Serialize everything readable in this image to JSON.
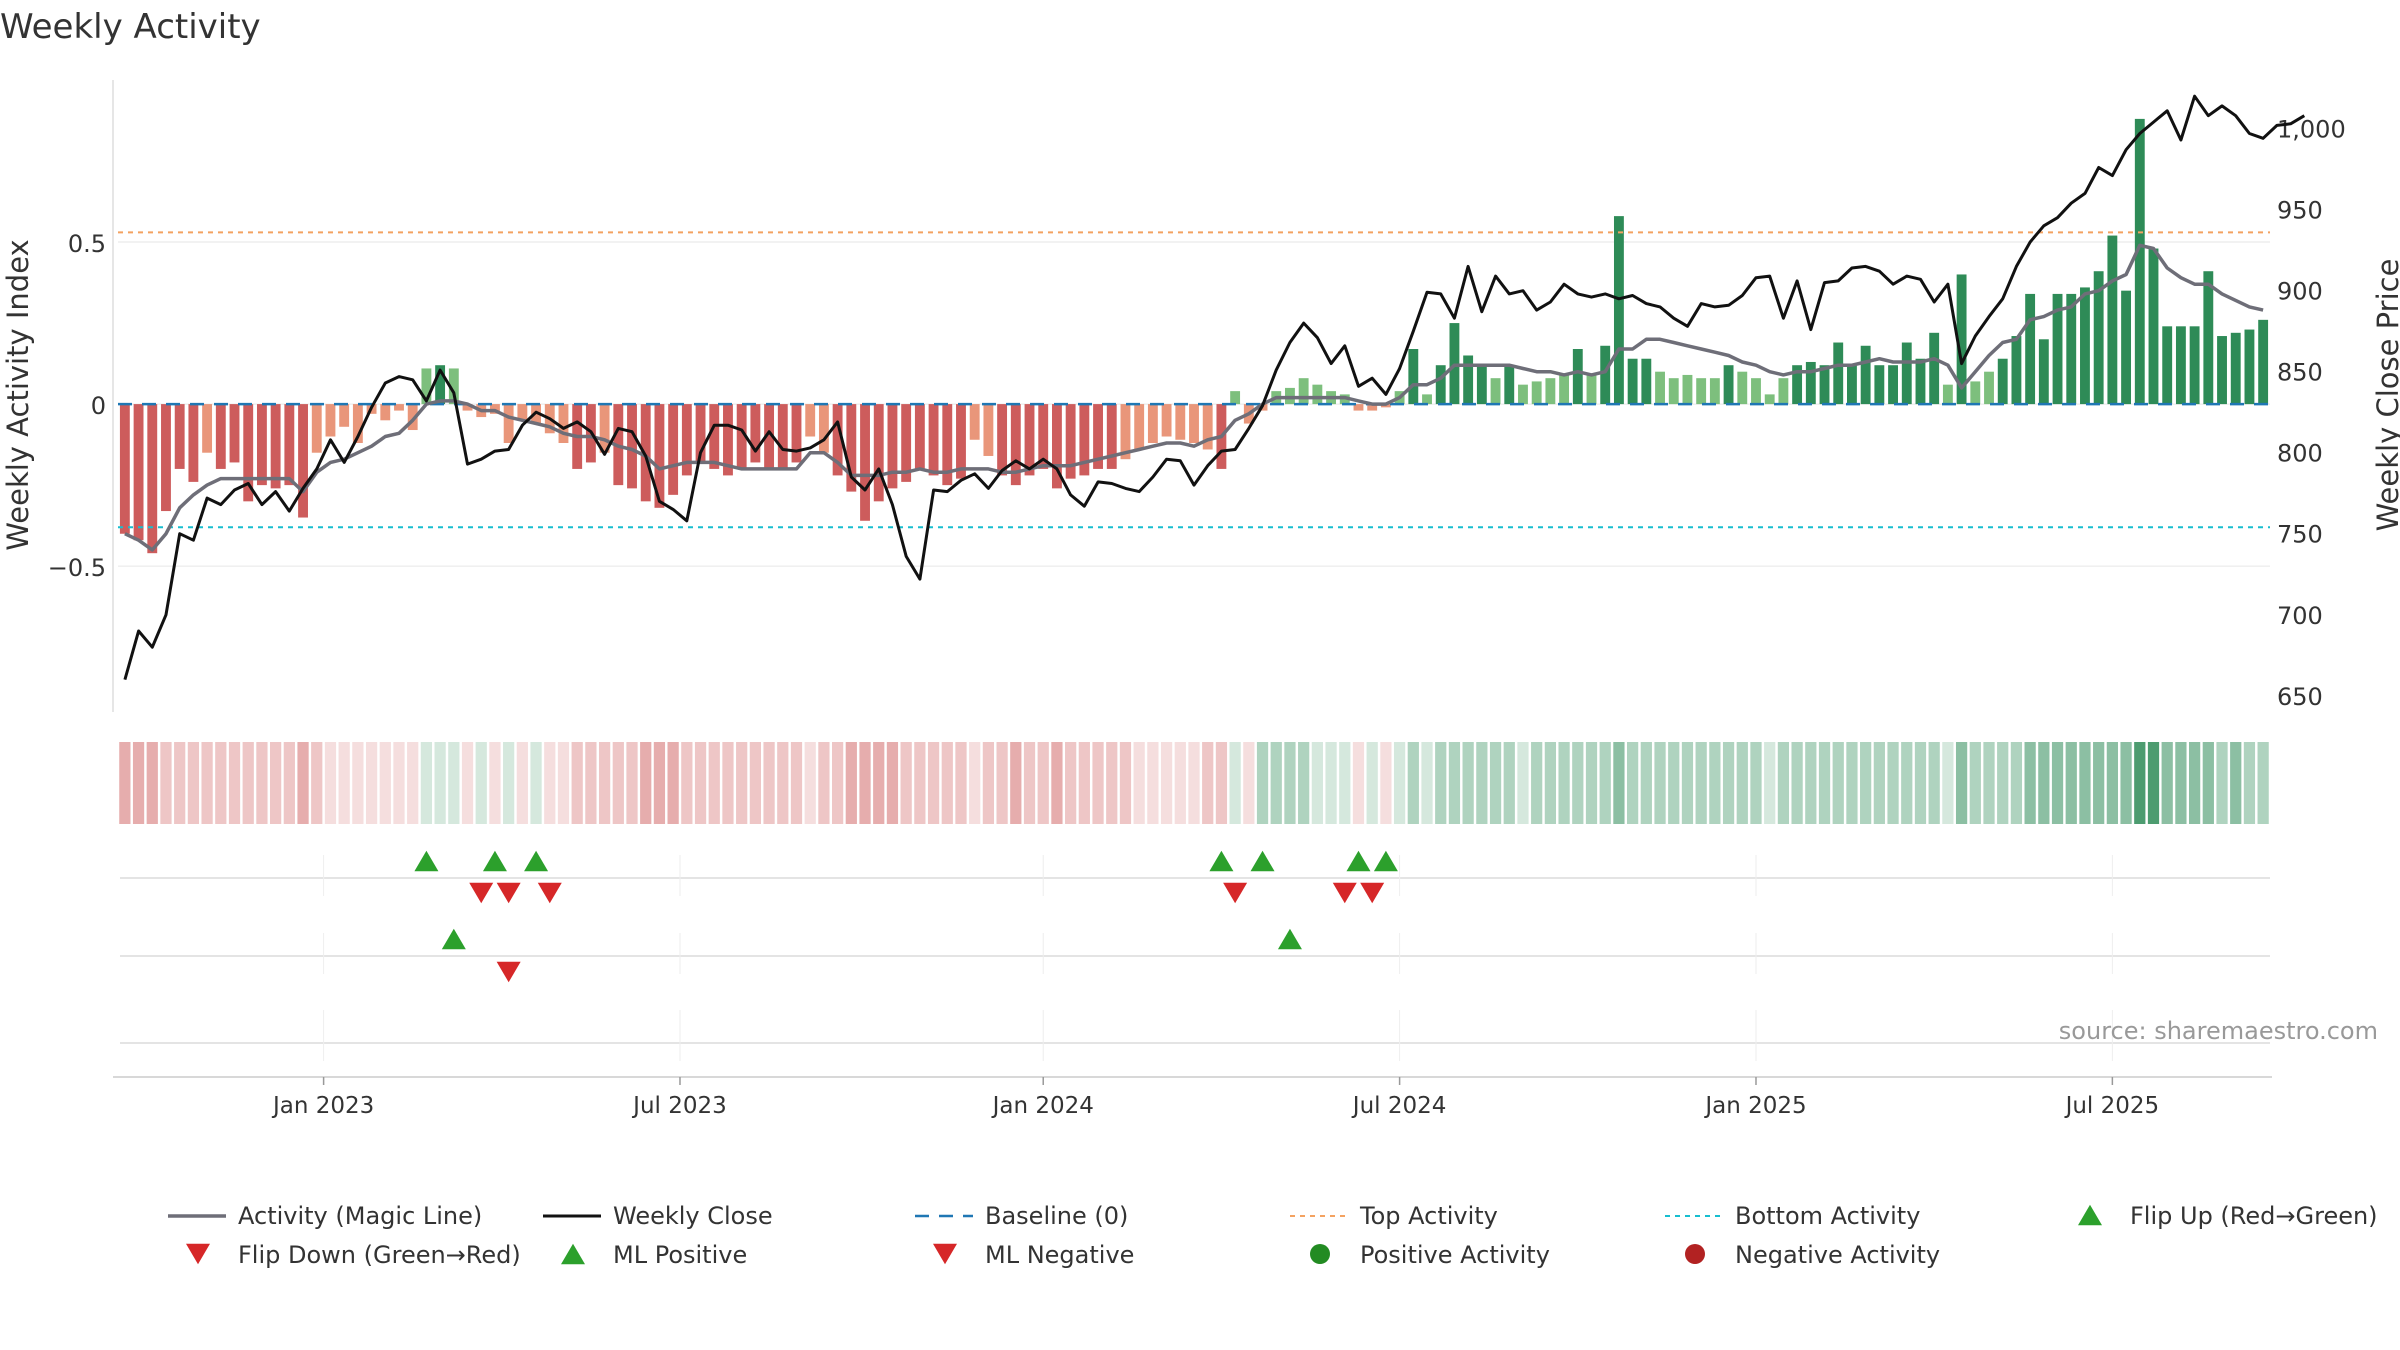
{
  "title": "Weekly Activity",
  "watermark": "source: sharemaestro.com",
  "colors": {
    "pos_strong": "#2e8b57",
    "pos_light": "#7dbf7d",
    "neg_strong": "#cd5c5c",
    "neg_light": "#e9967a",
    "magic_line": "#6e6e78",
    "close_line": "#111111",
    "baseline": "#1f77b4",
    "top_line": "#f4a261",
    "bottom_line": "#17becf",
    "flip_up": "#2ca02c",
    "flip_down": "#d62728",
    "pos_dot": "#228b22",
    "neg_dot": "#b22222",
    "grid": "#e6e6e6",
    "axis_text": "#333333"
  },
  "chart_data": {
    "type": "bar",
    "title": "Weekly Activity",
    "ylabel": "Weekly Activity Index",
    "y2label": "Weekly Close Price",
    "ylim": [
      -0.95,
      1.0
    ],
    "y2lim": [
      640,
      1030
    ],
    "yticks": [
      {
        "v": 0.5,
        "label": "0.5"
      },
      {
        "v": 0,
        "label": "0"
      },
      {
        "v": -0.5,
        "label": "−0.5"
      }
    ],
    "y2ticks": [
      {
        "v": 650,
        "label": "650"
      },
      {
        "v": 700,
        "label": "700"
      },
      {
        "v": 750,
        "label": "750"
      },
      {
        "v": 800,
        "label": "800"
      },
      {
        "v": 850,
        "label": "850"
      },
      {
        "v": 900,
        "label": "900"
      },
      {
        "v": 950,
        "label": "950"
      },
      {
        "v": 1000,
        "label": "1,000"
      }
    ],
    "xticks": [
      {
        "week": 14.5,
        "label": "Jan 2023"
      },
      {
        "week": 40.5,
        "label": "Jul 2023"
      },
      {
        "week": 67,
        "label": "Jan 2024"
      },
      {
        "week": 93,
        "label": "Jul 2024"
      },
      {
        "week": 119,
        "label": "Jan 2025"
      },
      {
        "week": 145,
        "label": "Jul 2025"
      }
    ],
    "top_activity": 0.53,
    "bottom_activity": -0.38,
    "baseline": 0,
    "activity": [
      -0.4,
      -0.42,
      -0.46,
      -0.33,
      -0.2,
      -0.24,
      -0.15,
      -0.2,
      -0.18,
      -0.3,
      -0.25,
      -0.26,
      -0.25,
      -0.35,
      -0.15,
      -0.1,
      -0.07,
      -0.12,
      -0.03,
      -0.05,
      -0.02,
      -0.08,
      0.11,
      0.12,
      0.11,
      -0.02,
      -0.04,
      -0.03,
      -0.12,
      -0.05,
      -0.06,
      -0.09,
      -0.12,
      -0.2,
      -0.18,
      -0.15,
      -0.25,
      -0.26,
      -0.3,
      -0.32,
      -0.28,
      -0.22,
      -0.18,
      -0.2,
      -0.22,
      -0.2,
      -0.18,
      -0.2,
      -0.2,
      -0.18,
      -0.1,
      -0.15,
      -0.22,
      -0.27,
      -0.36,
      -0.3,
      -0.26,
      -0.24,
      -0.2,
      -0.22,
      -0.25,
      -0.23,
      -0.11,
      -0.16,
      -0.22,
      -0.25,
      -0.22,
      -0.2,
      -0.26,
      -0.23,
      -0.22,
      -0.2,
      -0.2,
      -0.17,
      -0.14,
      -0.12,
      -0.1,
      -0.11,
      -0.12,
      -0.14,
      -0.2,
      0.04,
      -0.06,
      -0.02,
      0.04,
      0.05,
      0.08,
      0.06,
      0.04,
      0.03,
      -0.02,
      -0.02,
      -0.01,
      0.04,
      0.17,
      0.03,
      0.12,
      0.25,
      0.15,
      0.12,
      0.08,
      0.12,
      0.06,
      0.07,
      0.08,
      0.09,
      0.17,
      0.09,
      0.18,
      0.58,
      0.14,
      0.14,
      0.1,
      0.08,
      0.09,
      0.08,
      0.08,
      0.12,
      0.1,
      0.08,
      0.03,
      0.08,
      0.12,
      0.13,
      0.12,
      0.19,
      0.12,
      0.18,
      0.12,
      0.12,
      0.19,
      0.14,
      0.22,
      0.06,
      0.4,
      0.07,
      0.1,
      0.14,
      0.21,
      0.34,
      0.2,
      0.34,
      0.34,
      0.36,
      0.41,
      0.52,
      0.35,
      0.88,
      0.48,
      0.24,
      0.24,
      0.24,
      0.41,
      0.21,
      0.22,
      0.23,
      0.26
    ],
    "magic_line": [
      -0.4,
      -0.42,
      -0.45,
      -0.4,
      -0.32,
      -0.28,
      -0.25,
      -0.23,
      -0.23,
      -0.23,
      -0.23,
      -0.23,
      -0.23,
      -0.27,
      -0.21,
      -0.18,
      -0.17,
      -0.15,
      -0.13,
      -0.1,
      -0.09,
      -0.05,
      0.0,
      0.01,
      0.01,
      0.0,
      -0.02,
      -0.02,
      -0.04,
      -0.05,
      -0.06,
      -0.07,
      -0.09,
      -0.1,
      -0.1,
      -0.11,
      -0.13,
      -0.14,
      -0.16,
      -0.2,
      -0.19,
      -0.18,
      -0.18,
      -0.18,
      -0.19,
      -0.2,
      -0.2,
      -0.2,
      -0.2,
      -0.2,
      -0.15,
      -0.15,
      -0.18,
      -0.22,
      -0.22,
      -0.22,
      -0.21,
      -0.21,
      -0.2,
      -0.21,
      -0.21,
      -0.2,
      -0.2,
      -0.2,
      -0.21,
      -0.21,
      -0.2,
      -0.19,
      -0.19,
      -0.19,
      -0.18,
      -0.17,
      -0.16,
      -0.15,
      -0.14,
      -0.13,
      -0.12,
      -0.12,
      -0.13,
      -0.11,
      -0.1,
      -0.05,
      -0.03,
      0.0,
      0.02,
      0.02,
      0.02,
      0.02,
      0.02,
      0.02,
      0.01,
      0.0,
      0.0,
      0.02,
      0.06,
      0.06,
      0.08,
      0.12,
      0.12,
      0.12,
      0.12,
      0.12,
      0.11,
      0.1,
      0.1,
      0.09,
      0.1,
      0.09,
      0.1,
      0.17,
      0.17,
      0.2,
      0.2,
      0.19,
      0.18,
      0.17,
      0.16,
      0.15,
      0.13,
      0.12,
      0.1,
      0.09,
      0.1,
      0.1,
      0.11,
      0.12,
      0.12,
      0.13,
      0.14,
      0.13,
      0.13,
      0.13,
      0.14,
      0.12,
      0.05,
      0.1,
      0.15,
      0.19,
      0.2,
      0.26,
      0.27,
      0.29,
      0.3,
      0.34,
      0.35,
      0.38,
      0.4,
      0.49,
      0.48,
      0.42,
      0.39,
      0.37,
      0.37,
      0.34,
      0.32,
      0.3,
      0.29
    ],
    "weekly_close": [
      660,
      690,
      680,
      700,
      750,
      746,
      772,
      768,
      777,
      781,
      768,
      776,
      764,
      778,
      790,
      808,
      794,
      810,
      828,
      843,
      847,
      845,
      832,
      851,
      837,
      793,
      796,
      801,
      802,
      817,
      825,
      821,
      815,
      819,
      813,
      799,
      815,
      813,
      798,
      770,
      765,
      758,
      800,
      817,
      817,
      814,
      801,
      813,
      802,
      801,
      803,
      808,
      819,
      785,
      777,
      790,
      768,
      736,
      722,
      777,
      776,
      783,
      787,
      778,
      789,
      795,
      790,
      796,
      790,
      774,
      767,
      782,
      781,
      778,
      776,
      785,
      796,
      795,
      780,
      792,
      801,
      802,
      815,
      829,
      851,
      868,
      880,
      871,
      855,
      866,
      841,
      846,
      836,
      852,
      875,
      899,
      898,
      883,
      915,
      887,
      909,
      898,
      900,
      888,
      893,
      904,
      898,
      896,
      898,
      895,
      897,
      892,
      890,
      883,
      878,
      892,
      890,
      891,
      897,
      908,
      909,
      883,
      906,
      876,
      905,
      906,
      914,
      915,
      912,
      904,
      909,
      907,
      893,
      904,
      855,
      872,
      884,
      895,
      915,
      930,
      940,
      945,
      954,
      960,
      976,
      971,
      987,
      997,
      1004,
      1011,
      993,
      1020,
      1008,
      1014,
      1008,
      997,
      994,
      1002,
      1003,
      1008
    ],
    "heat_strip": [
      -3,
      -3,
      -3,
      -2,
      -2,
      -2,
      -2,
      -2,
      -2,
      -2,
      -2,
      -2,
      -2,
      -3,
      -2,
      -1,
      -1,
      -1,
      -1,
      -1,
      -1,
      -1,
      1,
      1,
      1,
      -1,
      1,
      -1,
      1,
      -1,
      1,
      -1,
      -1,
      -2,
      -2,
      -2,
      -2,
      -2,
      -3,
      -3,
      -3,
      -2,
      -2,
      -2,
      -2,
      -2,
      -2,
      -2,
      -2,
      -2,
      -1,
      -2,
      -2,
      -3,
      -3,
      -3,
      -3,
      -2,
      -2,
      -2,
      -2,
      -2,
      -1,
      -2,
      -2,
      -3,
      -2,
      -2,
      -3,
      -2,
      -2,
      -2,
      -2,
      -2,
      -1,
      -1,
      -1,
      -1,
      -1,
      -2,
      -2,
      1,
      -1,
      2,
      2,
      2,
      2,
      1,
      1,
      1,
      -1,
      1,
      -1,
      1,
      2,
      1,
      2,
      2,
      2,
      2,
      2,
      2,
      1,
      2,
      2,
      2,
      2,
      2,
      2,
      3,
      2,
      2,
      2,
      2,
      2,
      2,
      2,
      2,
      2,
      2,
      1,
      2,
      2,
      2,
      2,
      2,
      2,
      2,
      2,
      2,
      2,
      2,
      2,
      1,
      3,
      2,
      2,
      2,
      2,
      3,
      3,
      3,
      3,
      3,
      3,
      3,
      3,
      4,
      4,
      3,
      3,
      3,
      3,
      2,
      3,
      2,
      2
    ],
    "flip_up_weeks": [
      22,
      27,
      30,
      80,
      83,
      90,
      92
    ],
    "flip_down_weeks": [
      26,
      28,
      31,
      81,
      89,
      91
    ],
    "ml_positive_weeks": [
      24,
      85
    ],
    "ml_negative_weeks": [
      28
    ],
    "legend": [
      {
        "label": "Activity (Magic Line)",
        "marker": "solid-gray"
      },
      {
        "label": "Weekly Close",
        "marker": "solid-black"
      },
      {
        "label": "Baseline (0)",
        "marker": "dashed-blue"
      },
      {
        "label": "Top Activity",
        "marker": "dotted-orange"
      },
      {
        "label": "Bottom Activity",
        "marker": "dotted-cyan"
      },
      {
        "label": "Flip Up (Red→Green)",
        "marker": "triangle-up-green"
      },
      {
        "label": "Flip Down (Green→Red)",
        "marker": "triangle-down-red"
      },
      {
        "label": "ML Positive",
        "marker": "triangle-up-green"
      },
      {
        "label": "ML Negative",
        "marker": "triangle-down-red"
      },
      {
        "label": "Positive Activity",
        "marker": "circle-green"
      },
      {
        "label": "Negative Activity",
        "marker": "circle-darkred"
      }
    ]
  }
}
